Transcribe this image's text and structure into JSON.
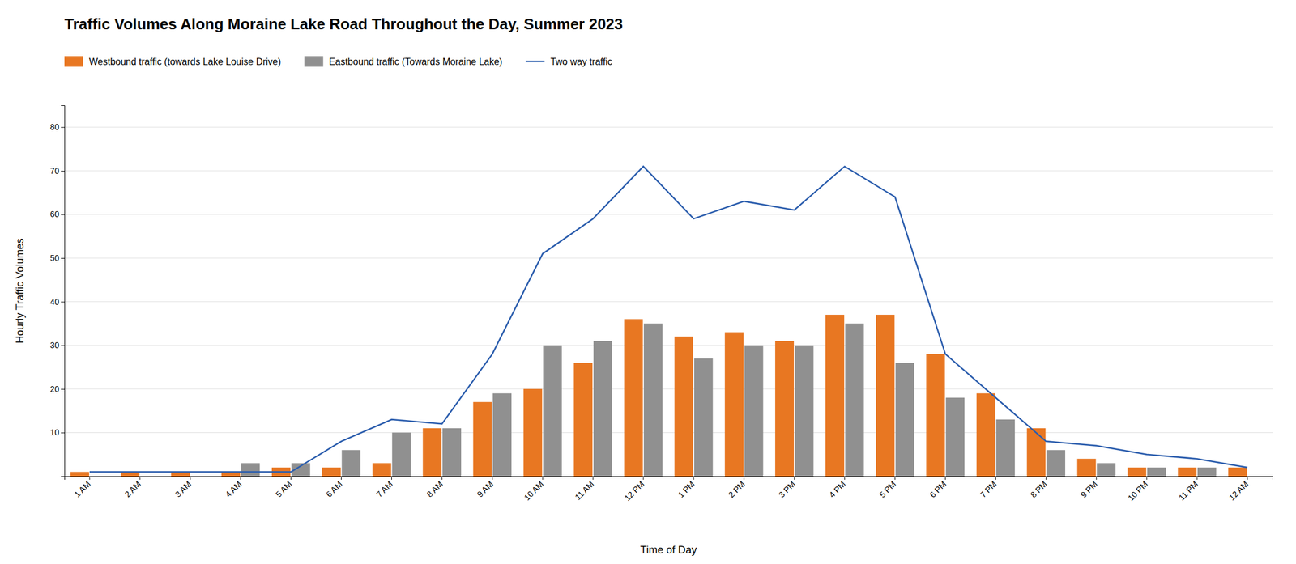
{
  "chart_data": {
    "type": "bar",
    "title": "Traffic Volumes Along Moraine Lake Road Throughout the Day, Summer 2023",
    "xlabel": "Time of Day",
    "ylabel": "Hourly Traffic Volumes",
    "categories": [
      "1 AM",
      "2 AM",
      "3 AM",
      "4 AM",
      "5 AM",
      "6 AM",
      "7 AM",
      "8 AM",
      "9 AM",
      "10 AM",
      "11 AM",
      "12 PM",
      "1 PM",
      "2 PM",
      "3 PM",
      "4 PM",
      "5 PM",
      "6 PM",
      "7 PM",
      "8 PM",
      "9 PM",
      "10 PM",
      "11 PM",
      "12 AM"
    ],
    "series": [
      {
        "name": "Westbound traffic (towards Lake Louise Drive)",
        "type": "bar",
        "color": "#E87722",
        "values": [
          1,
          1,
          1,
          1,
          2,
          2,
          3,
          11,
          17,
          20,
          26,
          36,
          32,
          33,
          31,
          37,
          37,
          28,
          19,
          11,
          4,
          2,
          2,
          2
        ]
      },
      {
        "name": "Eastbound traffic (Towards Moraine Lake)",
        "type": "bar",
        "color": "#909090",
        "values": [
          0,
          0,
          0,
          3,
          3,
          6,
          10,
          11,
          19,
          30,
          31,
          35,
          27,
          30,
          30,
          35,
          26,
          18,
          13,
          6,
          3,
          2,
          2,
          0
        ]
      },
      {
        "name": "Two way traffic",
        "type": "line",
        "color": "#2B5DAD",
        "values": [
          1,
          1,
          1,
          1,
          1,
          8,
          13,
          12,
          28,
          51,
          59,
          71,
          59,
          63,
          61,
          71,
          64,
          28,
          18,
          8,
          7,
          5,
          4,
          2
        ]
      }
    ],
    "ylim": [
      0,
      85
    ],
    "yticks": [
      10,
      20,
      30,
      40,
      50,
      60,
      70,
      80
    ],
    "grid": true,
    "legend": "upper left"
  }
}
